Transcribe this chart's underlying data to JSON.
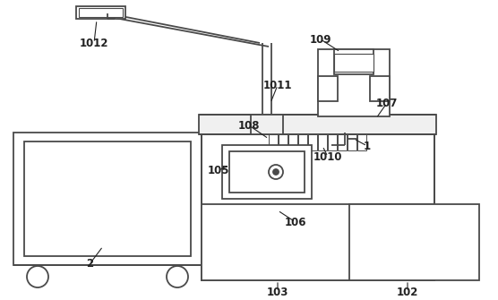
{
  "bg_color": "#ffffff",
  "line_color": "#4a4a4a",
  "label_color": "#222222",
  "lw": 1.3,
  "fig_w": 5.56,
  "fig_h": 3.35,
  "dpi": 100
}
